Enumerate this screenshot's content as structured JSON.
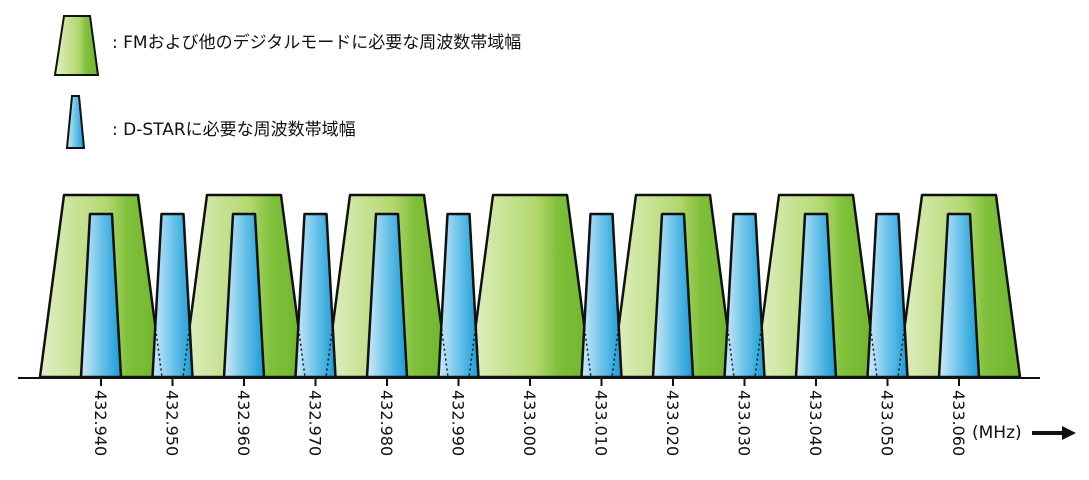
{
  "legend": [
    {
      "label": ": FMおよび他のデジタルモードに必要な周波数帯域幅"
    },
    {
      "label": ": D-STARに必要な周波数帯域幅"
    }
  ],
  "axis": {
    "ticks": [
      "432.940",
      "432.950",
      "432.960",
      "432.970",
      "432.980",
      "432.990",
      "433.000",
      "433.010",
      "433.020",
      "433.030",
      "433.040",
      "433.050",
      "433.060"
    ],
    "unit": "(MHz)"
  }
}
